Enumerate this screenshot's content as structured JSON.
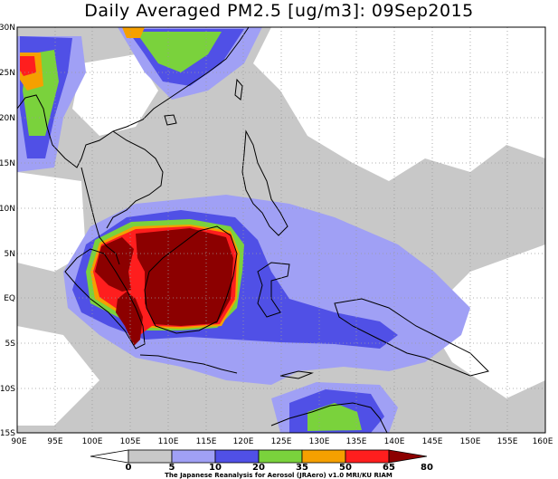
{
  "title": "Daily Averaged PM2.5 [ug/m3]: 09Sep2015",
  "lat_labels": [
    "30N",
    "25N",
    "20N",
    "15N",
    "10N",
    "5N",
    "EQ",
    "5S",
    "10S",
    "15S"
  ],
  "lon_labels": [
    "90E",
    "95E",
    "100E",
    "105E",
    "110E",
    "115E",
    "120E",
    "125E",
    "130E",
    "135E",
    "140E",
    "145E",
    "150E",
    "155E",
    "160E"
  ],
  "colorbar": {
    "ticks": [
      "0",
      "5",
      "10",
      "20",
      "35",
      "50",
      "65",
      "80"
    ],
    "colors": [
      "#ffffff",
      "#c8c8c8",
      "#a0a0f5",
      "#5050e6",
      "#7ad23c",
      "#f5a000",
      "#ff1e1e",
      "#8c0000"
    ]
  },
  "credit": "The Japanese Reanalysis for Aerosol (JRAero) v1.0 MRI/KU RIAM",
  "colors": {
    "land": "#ffffff",
    "coastline": "#000000",
    "grid": "#9a9a9a"
  }
}
